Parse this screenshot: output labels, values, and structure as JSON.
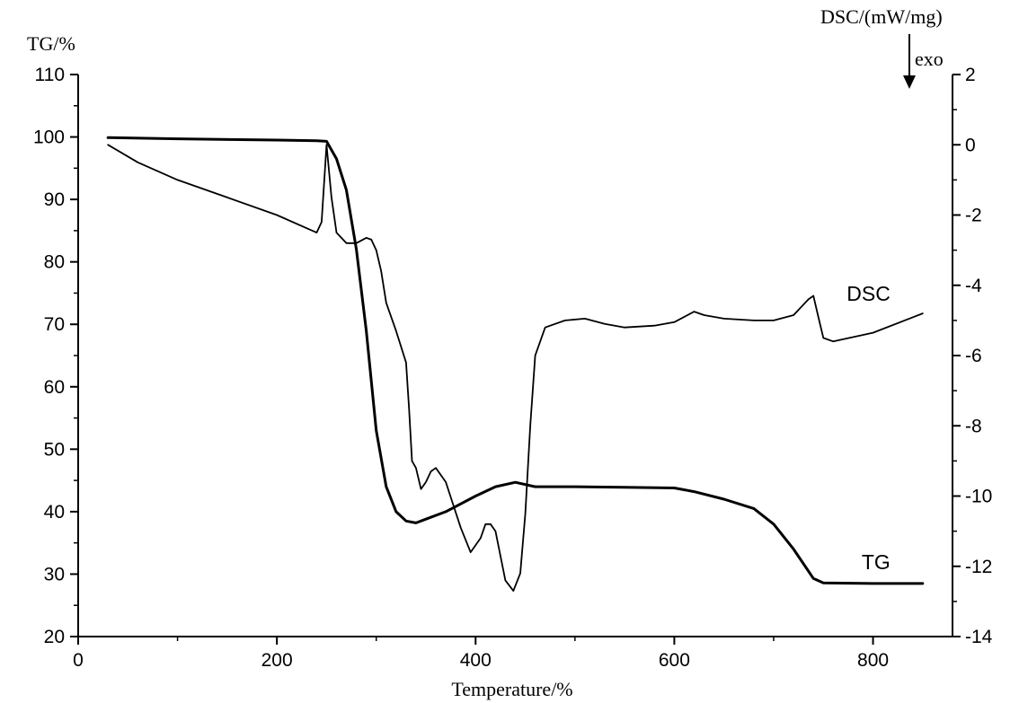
{
  "chart_data": {
    "type": "line",
    "xlabel": "Temperature/%",
    "ylabel_left": "TG/%",
    "ylabel_right": "DSC/(mW/mg)",
    "exo_label": "exo",
    "exo_arrow_direction": "down",
    "xlim": [
      0,
      880
    ],
    "ylim_left": [
      20,
      110
    ],
    "ylim_right": [
      -14,
      2
    ],
    "x_ticks": [
      0,
      200,
      400,
      600,
      800
    ],
    "x_tick_labels": [
      "0",
      "200",
      "400",
      "600",
      "800"
    ],
    "y_left_ticks": [
      20,
      30,
      40,
      50,
      60,
      70,
      80,
      90,
      100,
      110
    ],
    "y_left_tick_labels": [
      "20",
      "30",
      "40",
      "50",
      "60",
      "70",
      "80",
      "90",
      "100",
      "110"
    ],
    "y_right_ticks": [
      -14,
      -12,
      -10,
      -8,
      -6,
      -4,
      -2,
      0,
      2
    ],
    "y_right_tick_labels": [
      "-14",
      "-12",
      "-10",
      "-8",
      "-6",
      "-4",
      "-2",
      "0",
      "2"
    ],
    "grid": false,
    "series": [
      {
        "name": "TG",
        "axis": "left",
        "color": "#000000",
        "x": [
          30,
          100,
          200,
          240,
          250,
          260,
          270,
          280,
          290,
          300,
          310,
          320,
          330,
          340,
          350,
          370,
          400,
          420,
          440,
          460,
          500,
          550,
          600,
          620,
          650,
          680,
          700,
          720,
          740,
          750,
          800,
          850
        ],
        "y": [
          99.9,
          99.7,
          99.5,
          99.4,
          99.3,
          96.5,
          91.5,
          82,
          69,
          53,
          44,
          40,
          38.5,
          38.2,
          38.8,
          40,
          42.5,
          44,
          44.7,
          44,
          44,
          43.9,
          43.8,
          43.2,
          42,
          40.5,
          38,
          34,
          29.3,
          28.6,
          28.5,
          28.5
        ]
      },
      {
        "name": "DSC",
        "axis": "right",
        "color": "#000000",
        "x": [
          30,
          60,
          100,
          150,
          200,
          240,
          245,
          250,
          255,
          260,
          270,
          280,
          290,
          295,
          300,
          305,
          310,
          320,
          330,
          333,
          336,
          340,
          345,
          350,
          355,
          360,
          370,
          385,
          395,
          405,
          410,
          415,
          420,
          430,
          438,
          445,
          450,
          455,
          460,
          470,
          490,
          510,
          530,
          550,
          580,
          600,
          620,
          630,
          650,
          680,
          700,
          720,
          735,
          740,
          745,
          750,
          760,
          800,
          850
        ],
        "y": [
          0.0,
          -0.5,
          -1.0,
          -1.5,
          -2.0,
          -2.5,
          -2.2,
          0.0,
          -1.5,
          -2.5,
          -2.8,
          -2.8,
          -2.65,
          -2.7,
          -3.0,
          -3.6,
          -4.5,
          -5.3,
          -6.2,
          -7.5,
          -9.0,
          -9.2,
          -9.8,
          -9.6,
          -9.3,
          -9.2,
          -9.6,
          -10.9,
          -11.6,
          -11.2,
          -10.8,
          -10.8,
          -11.0,
          -12.4,
          -12.7,
          -12.2,
          -10.5,
          -8.0,
          -6.0,
          -5.2,
          -5.0,
          -4.95,
          -5.1,
          -5.2,
          -5.15,
          -5.05,
          -4.75,
          -4.85,
          -4.95,
          -5.0,
          -5.0,
          -4.85,
          -4.4,
          -4.3,
          -4.9,
          -5.5,
          -5.6,
          -5.35,
          -4.8
        ]
      }
    ]
  }
}
